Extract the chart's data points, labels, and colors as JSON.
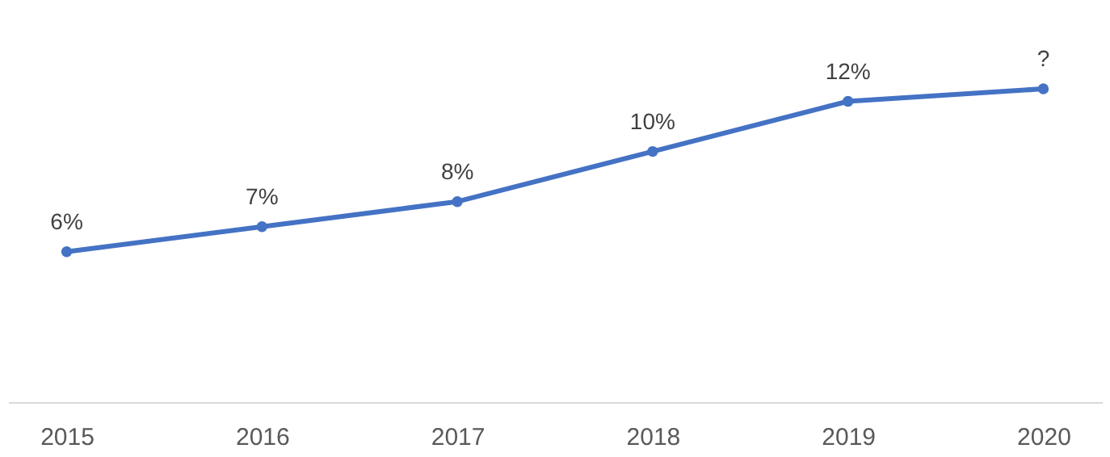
{
  "chart_data": {
    "type": "line",
    "categories": [
      "2015",
      "2016",
      "2017",
      "2018",
      "2019",
      "2020"
    ],
    "series": [
      {
        "color": "#4472c4",
        "values": [
          6,
          7,
          8,
          10,
          12,
          12.5
        ],
        "value_labels": [
          "6%",
          "7%",
          "8%",
          "10%",
          "12%",
          "?"
        ]
      }
    ],
    "tick_labels": "x",
    "grid": false,
    "marker": "circle",
    "line_style": "solid"
  }
}
